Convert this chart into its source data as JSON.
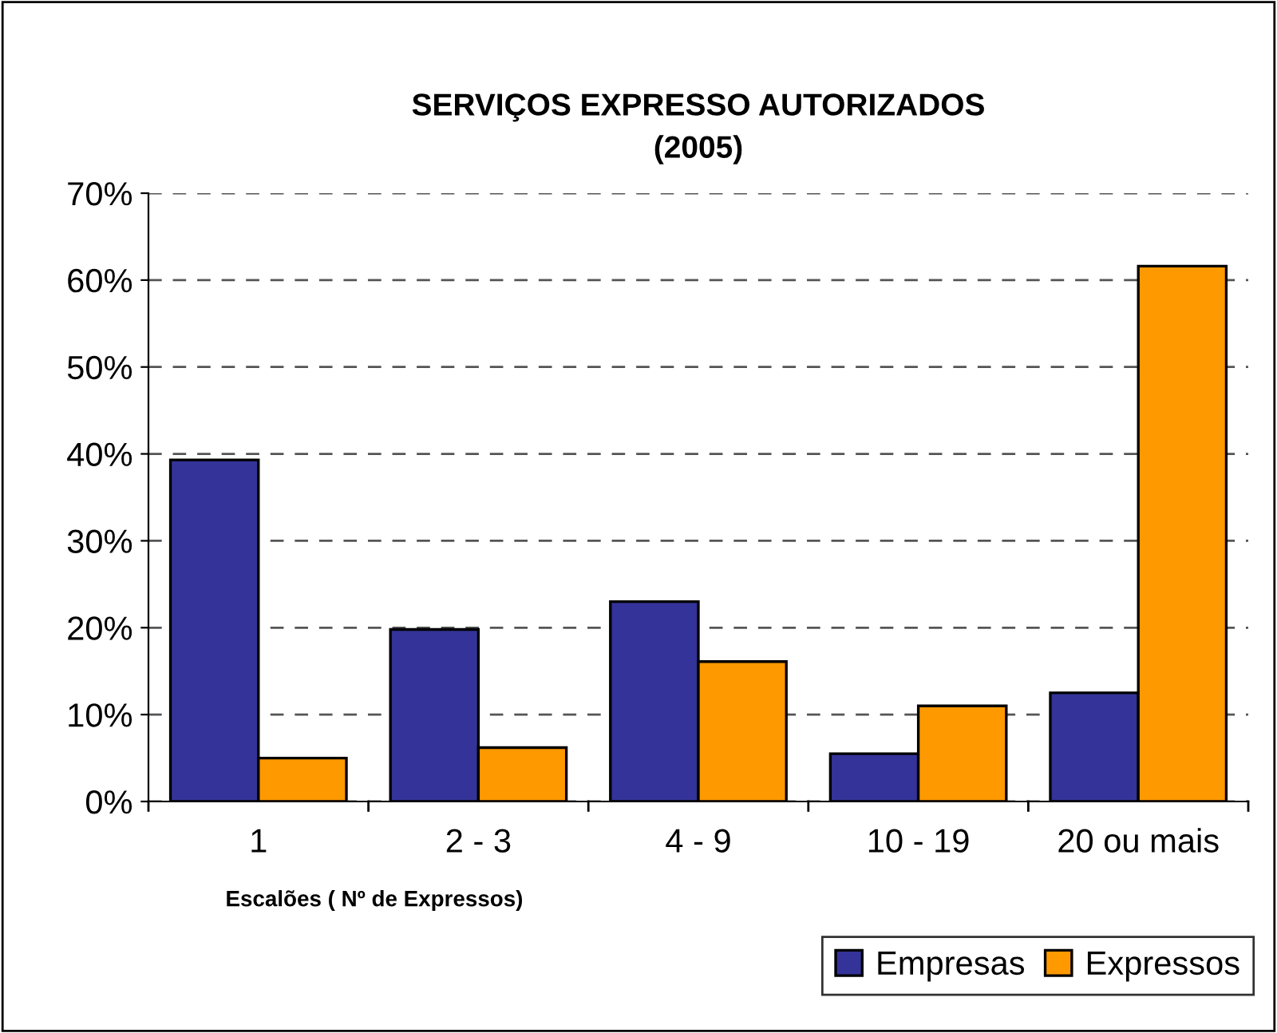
{
  "chart_data": {
    "type": "bar",
    "title": "SERVIÇOS EXPRESSO AUTORIZADOS\n(2005)",
    "xlabel": "Escalões ( Nº de Expressos)",
    "categories": [
      "1",
      "2 - 3",
      "4 - 9",
      "10 - 19",
      "20 ou mais"
    ],
    "series": [
      {
        "name": "Empresas",
        "color": "#333399",
        "values": [
          39.3,
          19.8,
          23.0,
          5.5,
          12.5
        ]
      },
      {
        "name": "Expressos",
        "color": "#ff9900",
        "values": [
          5.0,
          6.2,
          16.1,
          11.0,
          61.6
        ]
      }
    ],
    "ylim": [
      0,
      70
    ],
    "yticks": [
      {
        "value": 0,
        "label": "0%"
      },
      {
        "value": 10,
        "label": "10%"
      },
      {
        "value": 20,
        "label": "20%"
      },
      {
        "value": 30,
        "label": "30%"
      },
      {
        "value": 40,
        "label": "40%"
      },
      {
        "value": 50,
        "label": "50%"
      },
      {
        "value": 60,
        "label": "60%"
      },
      {
        "value": 70,
        "label": "70%"
      }
    ],
    "grid": "y",
    "legend": "bottom right"
  }
}
